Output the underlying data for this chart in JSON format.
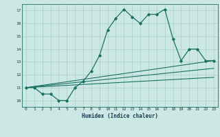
{
  "xlabel": "Humidex (Indice chaleur)",
  "xlim": [
    -0.5,
    23.5
  ],
  "ylim": [
    9.5,
    17.5
  ],
  "xticks": [
    0,
    1,
    2,
    3,
    4,
    5,
    6,
    7,
    8,
    9,
    10,
    11,
    12,
    13,
    14,
    15,
    16,
    17,
    18,
    19,
    20,
    21,
    22,
    23
  ],
  "yticks": [
    10,
    11,
    12,
    13,
    14,
    15,
    16,
    17
  ],
  "bg_color": "#cce8e5",
  "grid_color": "#aacfcc",
  "line_color": "#1a7060",
  "curve1_x": [
    0,
    1,
    2,
    3,
    4,
    5,
    6,
    7,
    8,
    9,
    10,
    11,
    12,
    13,
    14,
    15,
    16,
    17,
    18,
    19,
    20,
    21,
    22,
    23
  ],
  "curve1_y": [
    11,
    11,
    10.5,
    10.5,
    10,
    10,
    11,
    11.5,
    12.3,
    13.5,
    15.5,
    16.4,
    17.1,
    16.5,
    16.0,
    16.7,
    16.7,
    17.1,
    14.8,
    13.1,
    14.0,
    14.0,
    13.1,
    13.1
  ],
  "line1_x": [
    0,
    23
  ],
  "line1_y": [
    11,
    13.1
  ],
  "line2_x": [
    0,
    23
  ],
  "line2_y": [
    11,
    12.5
  ],
  "line3_x": [
    0,
    23
  ],
  "line3_y": [
    11,
    11.8
  ]
}
